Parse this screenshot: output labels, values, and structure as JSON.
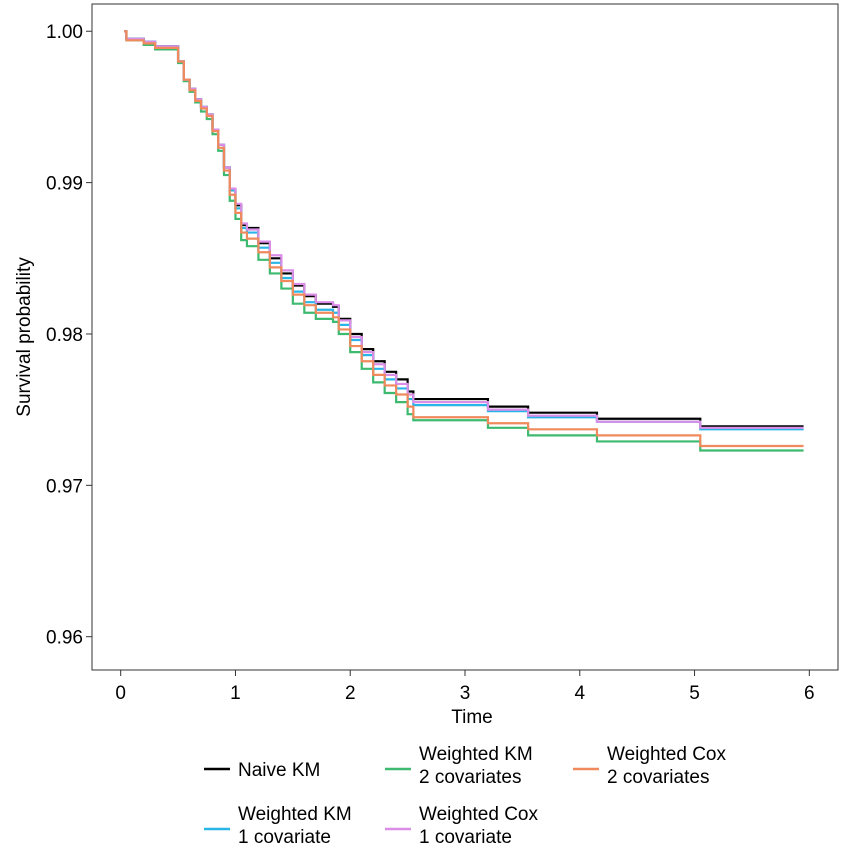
{
  "chart_data": {
    "type": "line",
    "step": true,
    "title": "",
    "xlabel": "Time",
    "ylabel": "Survival probability",
    "xlim": [
      -0.25,
      6.25
    ],
    "ylim": [
      0.9578,
      1.0018
    ],
    "x_ticks": [
      0,
      1,
      2,
      3,
      4,
      5,
      6
    ],
    "x_tick_labels": [
      "0",
      "1",
      "2",
      "3",
      "4",
      "5",
      "6"
    ],
    "y_ticks": [
      0.96,
      0.97,
      0.98,
      0.99,
      1.0
    ],
    "y_tick_labels": [
      "0.96",
      "0.97",
      "0.98",
      "0.99",
      "1.00"
    ],
    "grid": false,
    "legend_position": "bottom",
    "series": [
      {
        "name": "Naive KM",
        "color": "#000000",
        "x": [
          0.03,
          0.05,
          0.2,
          0.3,
          0.45,
          0.5,
          0.55,
          0.6,
          0.65,
          0.7,
          0.75,
          0.8,
          0.85,
          0.9,
          0.95,
          1.0,
          1.05,
          1.1,
          1.2,
          1.3,
          1.4,
          1.5,
          1.6,
          1.7,
          1.85,
          1.9,
          2.0,
          2.1,
          2.2,
          2.3,
          2.4,
          2.5,
          2.55,
          3.2,
          3.55,
          4.15,
          5.05,
          5.95
        ],
        "y": [
          1.0,
          0.9995,
          0.9993,
          0.999,
          0.999,
          0.998,
          0.9968,
          0.9962,
          0.9955,
          0.995,
          0.9945,
          0.9935,
          0.9925,
          0.991,
          0.9895,
          0.9885,
          0.9872,
          0.987,
          0.986,
          0.985,
          0.984,
          0.9832,
          0.9825,
          0.982,
          0.9818,
          0.981,
          0.98,
          0.979,
          0.9782,
          0.9775,
          0.977,
          0.9762,
          0.9757,
          0.9752,
          0.9748,
          0.9744,
          0.9739,
          0.9739
        ]
      },
      {
        "name": "Weighted KM\n1 covariate",
        "color": "#29b5e8",
        "x": [
          0.03,
          0.05,
          0.2,
          0.3,
          0.45,
          0.5,
          0.55,
          0.6,
          0.65,
          0.7,
          0.75,
          0.8,
          0.85,
          0.9,
          0.95,
          1.0,
          1.05,
          1.1,
          1.2,
          1.3,
          1.4,
          1.5,
          1.6,
          1.7,
          1.85,
          1.9,
          2.0,
          2.1,
          2.2,
          2.3,
          2.4,
          2.5,
          2.55,
          3.2,
          3.55,
          4.15,
          5.05,
          5.95
        ],
        "y": [
          1.0,
          0.9995,
          0.9993,
          0.999,
          0.999,
          0.998,
          0.9968,
          0.9962,
          0.9955,
          0.995,
          0.9945,
          0.9935,
          0.9925,
          0.991,
          0.9895,
          0.9883,
          0.987,
          0.9867,
          0.9857,
          0.9847,
          0.9837,
          0.9828,
          0.9821,
          0.9816,
          0.9814,
          0.9806,
          0.9796,
          0.9786,
          0.9777,
          0.977,
          0.9764,
          0.9757,
          0.9753,
          0.9749,
          0.9745,
          0.9742,
          0.9737,
          0.9737
        ]
      },
      {
        "name": "Weighted KM\n2 covariates",
        "color": "#3dba6f",
        "x": [
          0.03,
          0.05,
          0.2,
          0.3,
          0.45,
          0.5,
          0.55,
          0.6,
          0.65,
          0.7,
          0.75,
          0.8,
          0.85,
          0.9,
          0.95,
          1.0,
          1.05,
          1.1,
          1.2,
          1.3,
          1.4,
          1.5,
          1.6,
          1.7,
          1.85,
          1.9,
          2.0,
          2.1,
          2.2,
          2.3,
          2.4,
          2.5,
          2.55,
          3.2,
          3.55,
          4.15,
          5.05,
          5.95
        ],
        "y": [
          1.0,
          0.9994,
          0.9991,
          0.9988,
          0.9988,
          0.9979,
          0.9967,
          0.996,
          0.9953,
          0.9947,
          0.9942,
          0.9932,
          0.9921,
          0.9905,
          0.9888,
          0.9876,
          0.9862,
          0.9858,
          0.9849,
          0.984,
          0.983,
          0.982,
          0.9814,
          0.981,
          0.9808,
          0.98,
          0.9788,
          0.9777,
          0.9768,
          0.9761,
          0.9755,
          0.9747,
          0.9743,
          0.9738,
          0.9733,
          0.9729,
          0.9723,
          0.9723
        ]
      },
      {
        "name": "Weighted Cox\n1 covariate",
        "color": "#da8ee7",
        "x": [
          0.03,
          0.05,
          0.2,
          0.3,
          0.45,
          0.5,
          0.55,
          0.6,
          0.65,
          0.7,
          0.75,
          0.8,
          0.85,
          0.9,
          0.95,
          1.0,
          1.05,
          1.1,
          1.2,
          1.3,
          1.4,
          1.5,
          1.6,
          1.7,
          1.85,
          1.9,
          2.0,
          2.1,
          2.2,
          2.3,
          2.4,
          2.5,
          2.55,
          3.2,
          3.55,
          4.15,
          5.05,
          5.95
        ],
        "y": [
          1.0,
          0.9995,
          0.9993,
          0.999,
          0.999,
          0.998,
          0.9968,
          0.9962,
          0.9955,
          0.995,
          0.9945,
          0.9935,
          0.9925,
          0.991,
          0.9896,
          0.9886,
          0.9873,
          0.9869,
          0.9861,
          0.9852,
          0.9842,
          0.9833,
          0.9826,
          0.9821,
          0.9819,
          0.9809,
          0.9798,
          0.9788,
          0.978,
          0.9773,
          0.9767,
          0.976,
          0.9755,
          0.975,
          0.9746,
          0.9742,
          0.9738,
          0.9738
        ]
      },
      {
        "name": "Weighted Cox\n2 covariates",
        "color": "#f08a5d",
        "x": [
          0.03,
          0.05,
          0.2,
          0.3,
          0.45,
          0.5,
          0.55,
          0.6,
          0.65,
          0.7,
          0.75,
          0.8,
          0.85,
          0.9,
          0.95,
          1.0,
          1.05,
          1.1,
          1.2,
          1.3,
          1.4,
          1.5,
          1.6,
          1.7,
          1.85,
          1.9,
          2.0,
          2.1,
          2.2,
          2.3,
          2.4,
          2.5,
          2.55,
          3.2,
          3.55,
          4.15,
          5.05,
          5.95
        ],
        "y": [
          1.0,
          0.9994,
          0.9992,
          0.9989,
          0.9989,
          0.998,
          0.9968,
          0.9961,
          0.9954,
          0.9949,
          0.9944,
          0.9934,
          0.9923,
          0.9908,
          0.9892,
          0.988,
          0.9867,
          0.9863,
          0.9854,
          0.9844,
          0.9835,
          0.9826,
          0.9819,
          0.9814,
          0.9811,
          0.9803,
          0.9792,
          0.9782,
          0.9773,
          0.9766,
          0.976,
          0.9752,
          0.9745,
          0.9741,
          0.9737,
          0.9733,
          0.9726,
          0.9726
        ]
      }
    ]
  }
}
